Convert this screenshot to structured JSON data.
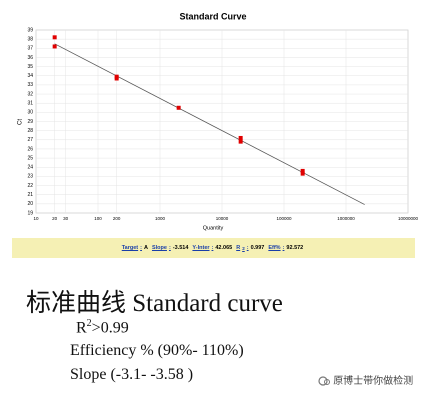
{
  "chart_data": {
    "type": "scatter",
    "title": "Standard Curve",
    "x_label": "Quantity",
    "y_label": "Ct",
    "xscale": "log",
    "xlim": [
      10,
      10000000
    ],
    "xticks": [
      10,
      20,
      30,
      100,
      200,
      1000,
      10000,
      100000,
      1000000,
      10000000
    ],
    "ylim": [
      19,
      39
    ],
    "yticks": [
      19,
      20,
      21,
      22,
      23,
      24,
      25,
      26,
      27,
      28,
      29,
      30,
      31,
      32,
      33,
      34,
      35,
      36,
      37,
      38,
      39
    ],
    "grid": true,
    "series": [
      {
        "type": "scatter",
        "color": "#e00000",
        "x": [
          20,
          20,
          200,
          200,
          2000,
          20000,
          20000,
          200000,
          200000
        ],
        "values": [
          38.2,
          37.2,
          33.9,
          33.7,
          30.5,
          27.2,
          26.8,
          23.6,
          23.3
        ]
      },
      {
        "type": "line",
        "color": "#555555",
        "x": [
          20,
          2000000
        ],
        "values": [
          37.49,
          19.92
        ]
      }
    ]
  },
  "stats": [
    {
      "label": "Target",
      "value": "A"
    },
    {
      "label": "Slope",
      "value": "-3.514"
    },
    {
      "label": "Y-Inter",
      "value": "42.065"
    },
    {
      "label": "R",
      "sup": "2",
      "value": "0.997"
    },
    {
      "label": "Eff%",
      "value": "92.572"
    }
  ],
  "heading": "标准曲线 Standard curve",
  "criteria": {
    "r2": {
      "base": "R",
      "sup": "2",
      "rest": ">0.99"
    },
    "efficiency": "Efficiency % (90%- 110%)",
    "slope": "Slope (-3.1- -3.58 )"
  },
  "watermark": "原博士带你做检测"
}
